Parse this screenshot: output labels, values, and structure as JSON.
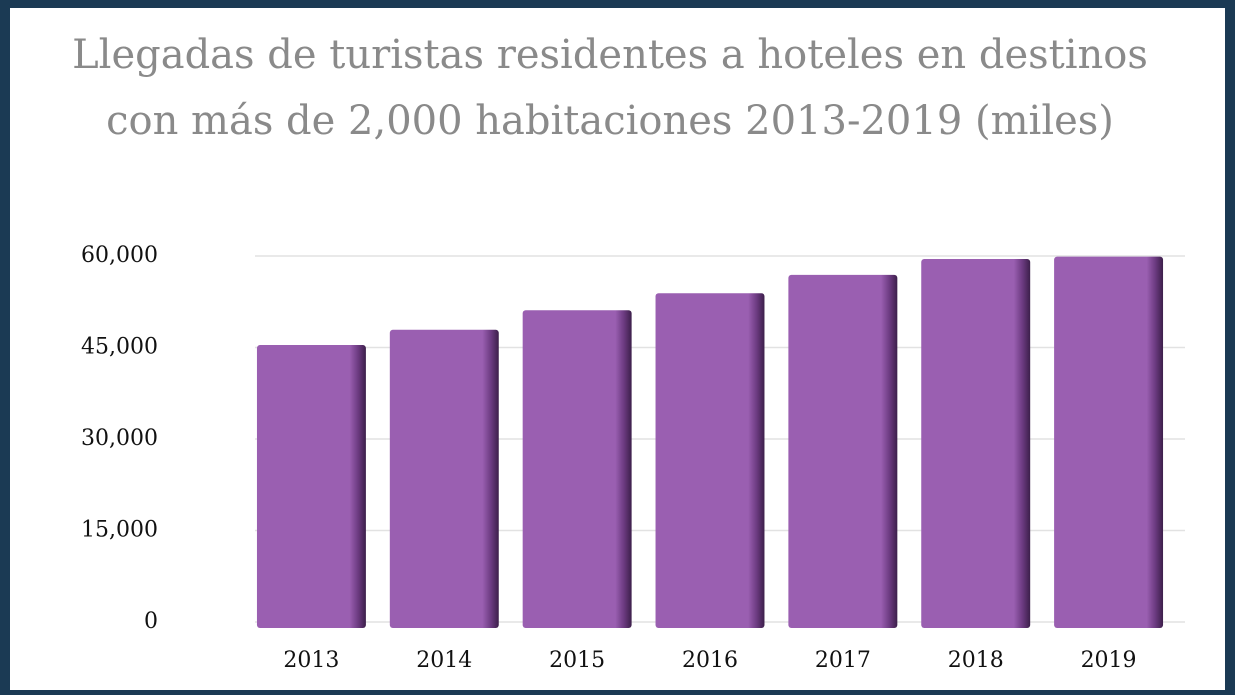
{
  "chart_data": {
    "type": "bar",
    "title": "Llegadas de turistas residentes a hoteles en destinos con más de 2,000 habitaciones 2013-2019 (miles)",
    "categories": [
      "2013",
      "2014",
      "2015",
      "2016",
      "2017",
      "2018",
      "2019"
    ],
    "values": [
      45400,
      47900,
      51100,
      53900,
      56900,
      59500,
      59900
    ],
    "color": "#9a5fb1",
    "ylim": [
      0,
      60000
    ],
    "yticks": [
      0,
      {
        "value": 15000,
        "label": "15,000"
      },
      {
        "value": 30000,
        "label": "30,000"
      },
      {
        "value": 45000,
        "label": "45,000"
      },
      {
        "value": 60000,
        "label": "60,000"
      }
    ],
    "grid": true
  }
}
